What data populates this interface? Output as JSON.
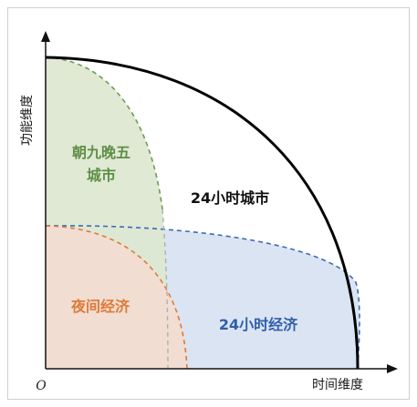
{
  "axes": {
    "x_title": "时间维度",
    "y_title": "功能维度",
    "origin_label": "O"
  },
  "regions": {
    "city_24h": "24小时城市",
    "nine_to_five_line1": "朝九晚五",
    "nine_to_five_line2": "城市",
    "night_economy": "夜间经济",
    "economy_24h": "24小时经济"
  },
  "colors": {
    "axis": "#111111",
    "city_24h_boundary": "#000000",
    "nine_to_five_fill": "#dde8d2",
    "nine_to_five_stroke": "#6e9a55",
    "night_fill": "#f1ddd2",
    "night_stroke": "#e07a38",
    "economy_24h_fill": "#dbe4f2",
    "economy_24h_stroke": "#3d6bb5",
    "overlap_stroke": "#b0b0b0"
  }
}
